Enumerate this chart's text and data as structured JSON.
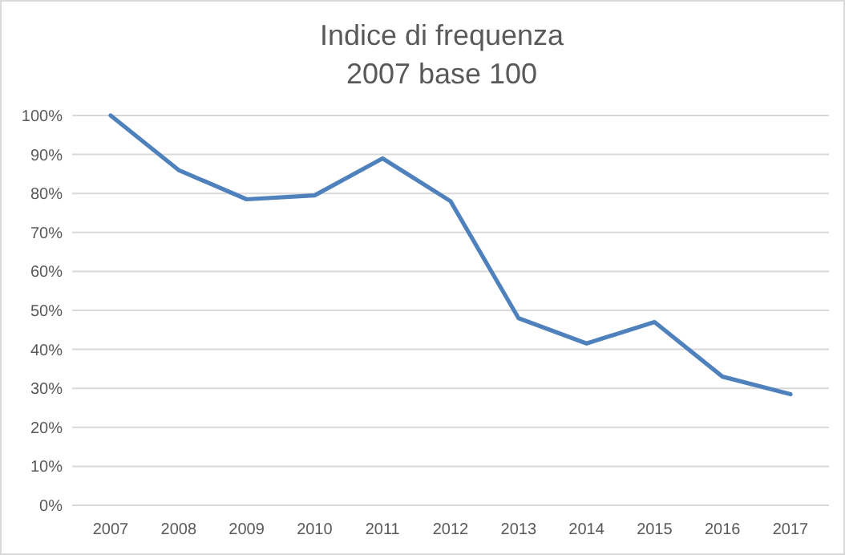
{
  "chart_data": {
    "type": "line",
    "title": "Indice di frequenza",
    "subtitle": "2007 base 100",
    "categories": [
      "2007",
      "2008",
      "2009",
      "2010",
      "2011",
      "2012",
      "2013",
      "2014",
      "2015",
      "2016",
      "2017"
    ],
    "series": [
      {
        "color": "#4f81bd",
        "values": [
          100,
          86,
          78.5,
          79.5,
          89,
          78,
          48,
          41.5,
          47,
          33,
          28.5
        ]
      }
    ],
    "ylim": [
      0,
      100
    ],
    "yticks": [
      {
        "value": 0,
        "label": "0%"
      },
      {
        "value": 10,
        "label": "10%"
      },
      {
        "value": 20,
        "label": "20%"
      },
      {
        "value": 30,
        "label": "30%"
      },
      {
        "value": 40,
        "label": "40%"
      },
      {
        "value": 50,
        "label": "50%"
      },
      {
        "value": 60,
        "label": "60%"
      },
      {
        "value": 70,
        "label": "70%"
      },
      {
        "value": 80,
        "label": "80%"
      },
      {
        "value": 90,
        "label": "90%"
      },
      {
        "value": 100,
        "label": "100%"
      }
    ],
    "grid": "y",
    "marker": "none",
    "line_style": "solid"
  }
}
